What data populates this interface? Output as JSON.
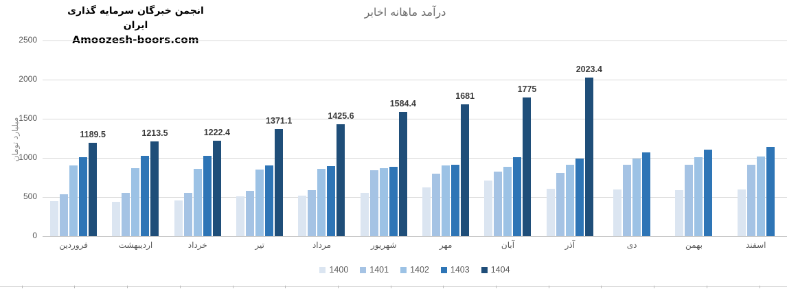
{
  "watermark": {
    "line1": "انجمن خبرگان سرمایه گذاری ایران",
    "line2": "Amoozesh-boors.com"
  },
  "title": "درآمد ماهانه  اخابر",
  "y_axis_title": "میلیارد تومان",
  "chart_data": {
    "type": "bar",
    "title": "درآمد ماهانه اخابر",
    "xlabel": "",
    "ylabel": "میلیارد تومان",
    "ylim": [
      0,
      2500
    ],
    "ytick_step": 500,
    "yticks": [
      0,
      500,
      1000,
      1500,
      2000,
      2500
    ],
    "grid": true,
    "legend_position": "bottom",
    "categories": [
      "فروردین",
      "اردیبهشت",
      "خرداد",
      "تیر",
      "مرداد",
      "شهریور",
      "مهر",
      "آبان",
      "آذر",
      "دی",
      "بهمن",
      "اسفند"
    ],
    "series": [
      {
        "name": "1400",
        "color": "#dbe5f1",
        "values": [
          450,
          440,
          455,
          505,
          515,
          555,
          625,
          710,
          605,
          600,
          590,
          600
        ]
      },
      {
        "name": "1401",
        "color": "#a5c3e4",
        "values": [
          535,
          555,
          550,
          580,
          590,
          840,
          800,
          825,
          805,
          915,
          915,
          915
        ]
      },
      {
        "name": "1402",
        "color": "#9cc2e5",
        "values": [
          905,
          865,
          860,
          855,
          860,
          870,
          900,
          885,
          910,
          990,
          1005,
          1020
        ]
      },
      {
        "name": "1403",
        "color": "#2e75b6",
        "values": [
          1010,
          1025,
          1030,
          905,
          895,
          885,
          910,
          1010,
          990,
          1070,
          1105,
          1140
        ]
      },
      {
        "name": "1404",
        "color": "#1f4e79",
        "values": [
          1189.5,
          1213.5,
          1222.4,
          1371.1,
          1425.6,
          1584.4,
          1681,
          1775,
          2023.4,
          null,
          null,
          null
        ],
        "data_labels": [
          "1189.5",
          "1213.5",
          "1222.4",
          "1371.1",
          "1425.6",
          "1584.4",
          "1681",
          "1775",
          "2023.4",
          "",
          "",
          ""
        ]
      }
    ]
  }
}
